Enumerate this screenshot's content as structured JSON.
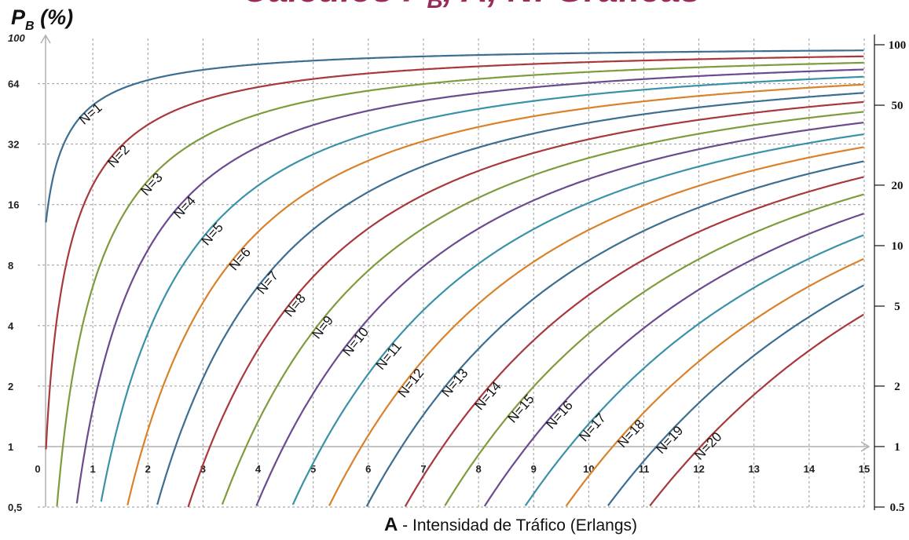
{
  "title": "Cálculos P",
  "title_sub": "B",
  "title_rest": ", A, N: Gráficas",
  "ylabel_main": "P",
  "ylabel_sub": "B",
  "ylabel_unit": " (%)",
  "xlabel_bold": "A",
  "xlabel_rest": " - Intensidad de Tráfico (Erlangs)",
  "colors": {
    "title": "#9b2a5c",
    "grid": "#9a9a9a",
    "axis": "#b0b0b0",
    "palette": [
      "#3c6e91",
      "#a8383b",
      "#7e9c3d",
      "#6c4a8f",
      "#3a92a8",
      "#d9822b"
    ]
  },
  "chart_data": {
    "type": "line",
    "title": "Cálculos PB, A, N: Gráficas",
    "xlabel": "A - Intensidad de Tráfico (Erlangs)",
    "ylabel": "PB (%)",
    "x_scale": "linear",
    "y_scale": "log",
    "xlim": [
      0,
      15
    ],
    "ylim": [
      0.5,
      100
    ],
    "grid": true,
    "x_ticks": [
      "0",
      "1",
      "2",
      "3",
      "4",
      "5",
      "6",
      "7",
      "8",
      "9",
      "10",
      "11",
      "12",
      "13",
      "14",
      "15"
    ],
    "y_ticks": [
      {
        "value": 100,
        "label": "100"
      },
      {
        "value": 64,
        "label": "64"
      },
      {
        "value": 32,
        "label": "32"
      },
      {
        "value": 16,
        "label": "16"
      },
      {
        "value": 8,
        "label": "8"
      },
      {
        "value": 4,
        "label": "4"
      },
      {
        "value": 2,
        "label": "2"
      },
      {
        "value": 1,
        "label": "1"
      },
      {
        "value": 0.5,
        "label": "0,5"
      }
    ],
    "right_ticks": [
      {
        "value": 100,
        "label": "100"
      },
      {
        "value": 50,
        "label": "50"
      },
      {
        "value": 20,
        "label": "20"
      },
      {
        "value": 10,
        "label": "10"
      },
      {
        "value": 5,
        "label": "5"
      },
      {
        "value": 2,
        "label": "2"
      },
      {
        "value": 1,
        "label": "1"
      },
      {
        "value": 0.5,
        "label": "0.5"
      }
    ],
    "formula": "Erlang B",
    "series": [
      {
        "name": "N=1",
        "N": 1,
        "label_x": 0.9
      },
      {
        "name": "N=2",
        "N": 2,
        "label_x": 1.4
      },
      {
        "name": "N=3",
        "N": 3,
        "label_x": 2.0
      },
      {
        "name": "N=4",
        "N": 4,
        "label_x": 2.6
      },
      {
        "name": "N=5",
        "N": 5,
        "label_x": 3.1
      },
      {
        "name": "N=6",
        "N": 6,
        "label_x": 3.6
      },
      {
        "name": "N=7",
        "N": 7,
        "label_x": 4.1
      },
      {
        "name": "N=8",
        "N": 8,
        "label_x": 4.6
      },
      {
        "name": "N=9",
        "N": 9,
        "label_x": 5.1
      },
      {
        "name": "N=10",
        "N": 10,
        "label_x": 5.7
      },
      {
        "name": "N=11",
        "N": 11,
        "label_x": 6.3
      },
      {
        "name": "N=12",
        "N": 12,
        "label_x": 6.7
      },
      {
        "name": "N=13",
        "N": 13,
        "label_x": 7.5
      },
      {
        "name": "N=14",
        "N": 14,
        "label_x": 8.1
      },
      {
        "name": "N=15",
        "N": 15,
        "label_x": 8.7
      },
      {
        "name": "N=16",
        "N": 16,
        "label_x": 9.4
      },
      {
        "name": "N=17",
        "N": 17,
        "label_x": 10.0
      },
      {
        "name": "N=18",
        "N": 18,
        "label_x": 10.7
      },
      {
        "name": "N=19",
        "N": 19,
        "label_x": 11.4
      },
      {
        "name": "N=20",
        "N": 20,
        "label_x": 12.1
      }
    ]
  }
}
